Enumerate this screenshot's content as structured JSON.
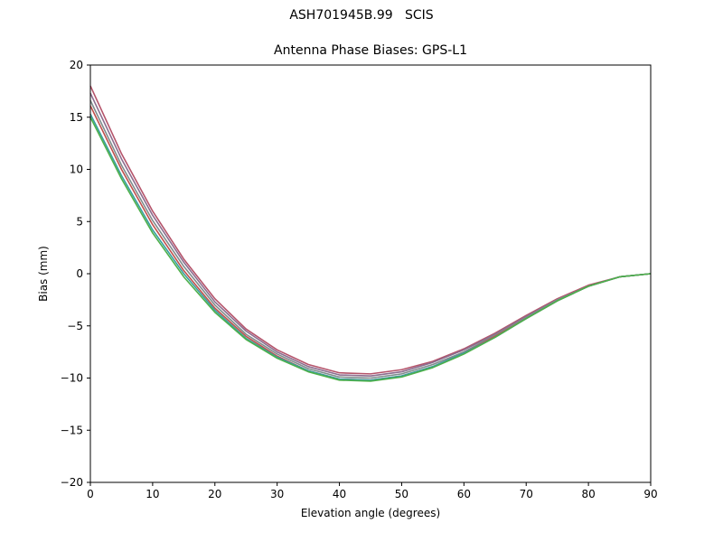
{
  "figure": {
    "suptitle": "ASH701945B.99   SCIS"
  },
  "chart_data": {
    "type": "line",
    "title": "Antenna Phase Biases: GPS-L1",
    "xlabel": "Elevation angle (degrees)",
    "ylabel": "Bias (mm)",
    "xlim": [
      0,
      90
    ],
    "ylim": [
      -20,
      20
    ],
    "xticks": [
      0,
      10,
      20,
      30,
      40,
      50,
      60,
      70,
      80,
      90
    ],
    "yticks": [
      -20,
      -15,
      -10,
      -5,
      0,
      5,
      10,
      15,
      20
    ],
    "xtick_labels": [
      "0",
      "10",
      "20",
      "30",
      "40",
      "50",
      "60",
      "70",
      "80",
      "90"
    ],
    "ytick_labels": [
      "−20",
      "−15",
      "−10",
      "−5",
      "0",
      "5",
      "10",
      "15",
      "20"
    ],
    "grid": false,
    "x": [
      0,
      5,
      10,
      15,
      20,
      25,
      30,
      35,
      40,
      45,
      50,
      55,
      60,
      65,
      70,
      75,
      80,
      85,
      90
    ],
    "series": [
      {
        "color": "#b5546b",
        "values": [
          18.0,
          11.5,
          6.0,
          1.4,
          -2.4,
          -5.3,
          -7.3,
          -8.7,
          -9.5,
          -9.6,
          -9.2,
          -8.4,
          -7.2,
          -5.7,
          -4.0,
          -2.4,
          -1.1,
          -0.3,
          0.0
        ]
      },
      {
        "color": "#8c6d8f",
        "values": [
          17.3,
          11.0,
          5.6,
          1.1,
          -2.7,
          -5.5,
          -7.5,
          -8.9,
          -9.7,
          -9.8,
          -9.4,
          -8.5,
          -7.3,
          -5.8,
          -4.1,
          -2.5,
          -1.2,
          -0.3,
          0.0
        ]
      },
      {
        "color": "#7f8c8d",
        "values": [
          16.6,
          10.4,
          5.1,
          0.7,
          -3.0,
          -5.8,
          -7.7,
          -9.1,
          -9.9,
          -10.0,
          -9.6,
          -8.7,
          -7.5,
          -5.9,
          -4.2,
          -2.5,
          -1.2,
          -0.3,
          0.0
        ]
      },
      {
        "color": "#c0504d",
        "values": [
          16.1,
          10.0,
          4.7,
          0.3,
          -3.3,
          -6.0,
          -7.9,
          -9.3,
          -10.1,
          -10.2,
          -9.8,
          -8.9,
          -7.6,
          -6.0,
          -4.3,
          -2.6,
          -1.2,
          -0.3,
          0.0
        ]
      },
      {
        "color": "#3aa0a0",
        "values": [
          15.3,
          9.4,
          4.2,
          0.0,
          -3.5,
          -6.2,
          -8.0,
          -9.3,
          -10.1,
          -10.2,
          -9.8,
          -8.9,
          -7.6,
          -6.1,
          -4.3,
          -2.6,
          -1.2,
          -0.3,
          0.0
        ]
      },
      {
        "color": "#4daf4a",
        "values": [
          15.0,
          9.1,
          3.9,
          -0.3,
          -3.7,
          -6.3,
          -8.1,
          -9.4,
          -10.2,
          -10.3,
          -9.9,
          -9.0,
          -7.7,
          -6.1,
          -4.3,
          -2.6,
          -1.2,
          -0.3,
          0.0
        ]
      }
    ]
  }
}
